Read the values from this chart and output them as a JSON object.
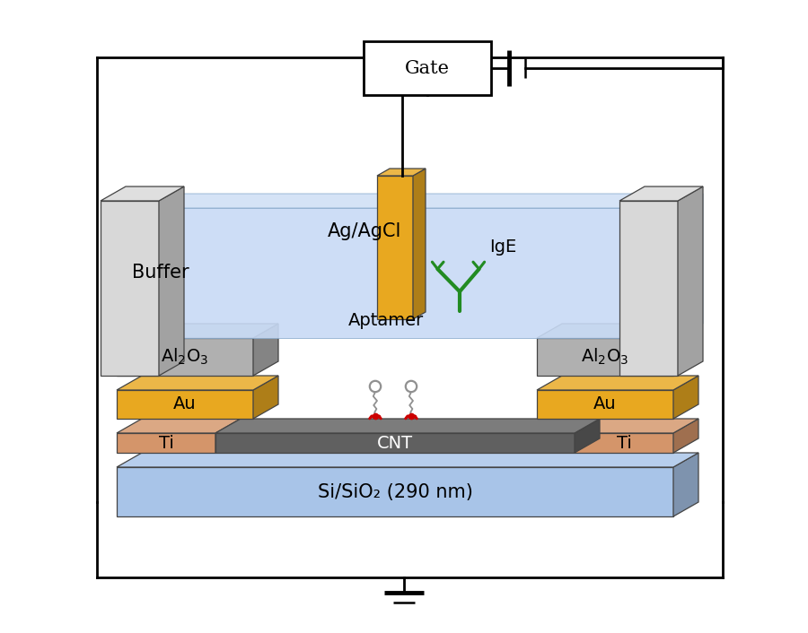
{
  "bg_color": "#ffffff",
  "colors": {
    "si_sio2": "#a8c4e8",
    "ti": "#d4956a",
    "cnt": "#606060",
    "au": "#e8a820",
    "al2o3": "#b0b0b0",
    "pillar": "#d8d8d8",
    "buffer_liq": "#c8daf5",
    "ag_agcl": "#e8a820",
    "ige_green": "#228B22",
    "aptamer_chain": "#909090",
    "aptamer_red": "#cc0000"
  },
  "labels": {
    "si_sio2": "Si/SiO₂ (290 nm)",
    "ti": "Ti",
    "cnt": "CNT",
    "au": "Au",
    "al2o3": "Al₂O₃",
    "ag_agcl": "Ag/AgCl",
    "buffer": "Buffer",
    "aptamer": "Aptamer",
    "ige": "IgE",
    "gate": "Gate"
  },
  "font_sizes": {
    "large": 15,
    "medium": 14
  }
}
